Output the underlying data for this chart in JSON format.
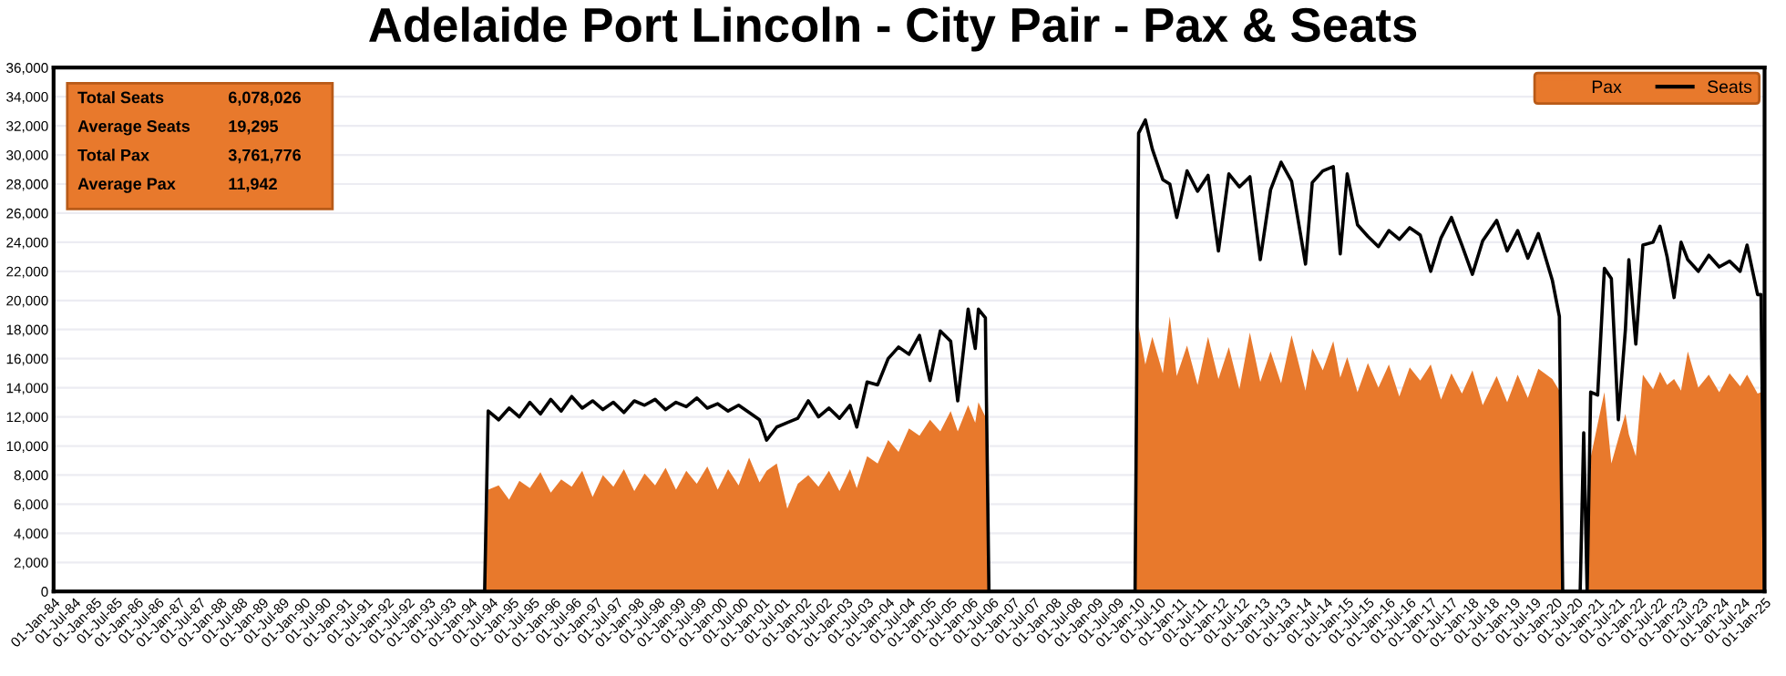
{
  "chart_data": {
    "type": "area",
    "title": "Adelaide Port Lincoln - City Pair - Pax & Seats",
    "x": [
      "1984-01",
      "1994-05",
      "1994-06",
      "1994-09",
      "1994-12",
      "1995-03",
      "1995-06",
      "1995-09",
      "1995-12",
      "1996-03",
      "1996-06",
      "1996-09",
      "1996-12",
      "1997-03",
      "1997-06",
      "1997-09",
      "1997-12",
      "1998-03",
      "1998-06",
      "1998-09",
      "1998-12",
      "1999-03",
      "1999-06",
      "1999-09",
      "1999-12",
      "2000-03",
      "2000-06",
      "2000-09",
      "2000-12",
      "2001-02",
      "2001-05",
      "2001-08",
      "2001-11",
      "2002-02",
      "2002-05",
      "2002-08",
      "2002-11",
      "2003-02",
      "2003-04",
      "2003-07",
      "2003-10",
      "2004-01",
      "2004-04",
      "2004-07",
      "2004-10",
      "2005-01",
      "2005-04",
      "2005-07",
      "2005-09",
      "2005-12",
      "2006-02",
      "2006-03",
      "2006-05",
      "2006-06",
      "2009-12",
      "2010-01",
      "2010-03",
      "2010-05",
      "2010-08",
      "2010-10",
      "2010-12",
      "2011-03",
      "2011-06",
      "2011-09",
      "2011-12",
      "2012-03",
      "2012-06",
      "2012-09",
      "2012-12",
      "2013-03",
      "2013-06",
      "2013-09",
      "2014-01",
      "2014-03",
      "2014-06",
      "2014-09",
      "2014-11",
      "2015-01",
      "2015-04",
      "2015-07",
      "2015-10",
      "2016-01",
      "2016-04",
      "2016-07",
      "2016-10",
      "2017-01",
      "2017-04",
      "2017-07",
      "2017-10",
      "2018-01",
      "2018-04",
      "2018-08",
      "2018-11",
      "2019-02",
      "2019-05",
      "2019-08",
      "2019-12",
      "2020-02",
      "2020-03",
      "2020-08",
      "2020-09",
      "2020-10",
      "2020-11",
      "2021-01",
      "2021-03",
      "2021-05",
      "2021-07",
      "2021-09",
      "2021-10",
      "2021-12",
      "2022-02",
      "2022-05",
      "2022-07",
      "2022-09",
      "2022-11",
      "2023-01",
      "2023-03",
      "2023-06",
      "2023-09",
      "2023-12",
      "2024-03",
      "2024-06",
      "2024-08",
      "2024-11",
      "2024-12",
      "2025-01"
    ],
    "series": [
      {
        "name": "Pax",
        "color": "#e8792c",
        "values": [
          0,
          0,
          7000,
          7300,
          6300,
          7600,
          7100,
          8200,
          6800,
          7700,
          7200,
          8300,
          6500,
          8000,
          7200,
          8400,
          6900,
          8100,
          7300,
          8500,
          7000,
          8300,
          7400,
          8600,
          7000,
          8400,
          7300,
          9200,
          7500,
          8300,
          8800,
          5700,
          7400,
          8000,
          7200,
          8300,
          6900,
          8400,
          7100,
          9300,
          8800,
          10400,
          9600,
          11200,
          10700,
          11800,
          11000,
          12400,
          11000,
          12800,
          11600,
          13000,
          12000,
          0,
          0,
          18200,
          15600,
          17500,
          15000,
          18900,
          14800,
          16900,
          14200,
          17500,
          14600,
          16800,
          13900,
          17800,
          14400,
          16500,
          14300,
          17600,
          13800,
          16700,
          15200,
          17200,
          14700,
          16100,
          13700,
          15700,
          14000,
          15600,
          13400,
          15400,
          14500,
          15600,
          13200,
          15000,
          13600,
          15200,
          12800,
          14800,
          13000,
          14900,
          13300,
          15300,
          14600,
          13800,
          0,
          0,
          0,
          0,
          9200,
          11500,
          13700,
          8800,
          10500,
          12200,
          10800,
          9300,
          14900,
          13900,
          15100,
          14200,
          14600,
          13800,
          16500,
          14000,
          14900,
          13700,
          15000,
          14100,
          14900,
          13600,
          13700,
          0
        ]
      },
      {
        "name": "Seats",
        "type": "line",
        "color": "#000000",
        "values": [
          0,
          0,
          12400,
          11800,
          12600,
          12000,
          13000,
          12200,
          13200,
          12400,
          13400,
          12600,
          13100,
          12500,
          13000,
          12300,
          13100,
          12800,
          13200,
          12500,
          13000,
          12700,
          13300,
          12600,
          12900,
          12400,
          12800,
          12300,
          11800,
          10400,
          11300,
          11600,
          11900,
          13100,
          12000,
          12600,
          11900,
          12800,
          11300,
          14400,
          14200,
          16000,
          16800,
          16300,
          17600,
          14500,
          17900,
          17200,
          13100,
          19400,
          16700,
          19400,
          18800,
          0,
          0,
          31500,
          32400,
          30400,
          28300,
          28000,
          25700,
          28900,
          27500,
          28600,
          23400,
          28700,
          27800,
          28500,
          22800,
          27600,
          29500,
          28200,
          22500,
          28100,
          28900,
          29200,
          23200,
          28700,
          25200,
          24400,
          23700,
          24800,
          24200,
          25000,
          24500,
          22000,
          24300,
          25700,
          23800,
          21800,
          24100,
          25500,
          23400,
          24800,
          22900,
          24600,
          21400,
          18900,
          0,
          0,
          10900,
          0,
          13700,
          13500,
          22200,
          21500,
          11800,
          18000,
          22800,
          17000,
          23800,
          24000,
          25100,
          23000,
          20200,
          24000,
          22800,
          22000,
          23100,
          22300,
          22700,
          22000,
          23800,
          20400,
          20400,
          0
        ]
      }
    ],
    "xlim": [
      "1984-01-01",
      "2025-01-01"
    ],
    "xticks": [
      {
        "value": "1984-01-01",
        "label": "01-Jan-84"
      },
      {
        "value": "1984-07-01",
        "label": "01-Jul-84"
      },
      {
        "value": "1985-01-01",
        "label": "01-Jan-85"
      },
      {
        "value": "1985-07-01",
        "label": "01-Jul-85"
      },
      {
        "value": "1986-01-01",
        "label": "01-Jan-86"
      },
      {
        "value": "1986-07-01",
        "label": "01-Jul-86"
      },
      {
        "value": "1987-01-01",
        "label": "01-Jan-87"
      },
      {
        "value": "1987-07-01",
        "label": "01-Jul-87"
      },
      {
        "value": "1988-01-01",
        "label": "01-Jan-88"
      },
      {
        "value": "1988-07-01",
        "label": "01-Jul-88"
      },
      {
        "value": "1989-01-01",
        "label": "01-Jan-89"
      },
      {
        "value": "1989-07-01",
        "label": "01-Jul-89"
      },
      {
        "value": "1990-01-01",
        "label": "01-Jan-90"
      },
      {
        "value": "1990-07-01",
        "label": "01-Jul-90"
      },
      {
        "value": "1991-01-01",
        "label": "01-Jan-91"
      },
      {
        "value": "1991-07-01",
        "label": "01-Jul-91"
      },
      {
        "value": "1992-01-01",
        "label": "01-Jan-92"
      },
      {
        "value": "1992-07-01",
        "label": "01-Jul-92"
      },
      {
        "value": "1993-01-01",
        "label": "01-Jan-93"
      },
      {
        "value": "1993-07-01",
        "label": "01-Jul-93"
      },
      {
        "value": "1994-01-01",
        "label": "01-Jan-94"
      },
      {
        "value": "1994-07-01",
        "label": "01-Jul-94"
      },
      {
        "value": "1995-01-01",
        "label": "01-Jan-95"
      },
      {
        "value": "1995-07-01",
        "label": "01-Jul-95"
      },
      {
        "value": "1996-01-01",
        "label": "01-Jan-96"
      },
      {
        "value": "1996-07-01",
        "label": "01-Jul-96"
      },
      {
        "value": "1997-01-01",
        "label": "01-Jan-97"
      },
      {
        "value": "1997-07-01",
        "label": "01-Jul-97"
      },
      {
        "value": "1998-01-01",
        "label": "01-Jan-98"
      },
      {
        "value": "1998-07-01",
        "label": "01-Jul-98"
      },
      {
        "value": "1999-01-01",
        "label": "01-Jan-99"
      },
      {
        "value": "1999-07-01",
        "label": "01-Jul-99"
      },
      {
        "value": "2000-01-01",
        "label": "01-Jan-00"
      },
      {
        "value": "2000-07-01",
        "label": "01-Jul-00"
      },
      {
        "value": "2001-01-01",
        "label": "01-Jan-01"
      },
      {
        "value": "2001-07-01",
        "label": "01-Jul-01"
      },
      {
        "value": "2002-01-01",
        "label": "01-Jan-02"
      },
      {
        "value": "2002-07-01",
        "label": "01-Jul-02"
      },
      {
        "value": "2003-01-01",
        "label": "01-Jan-03"
      },
      {
        "value": "2003-07-01",
        "label": "01-Jul-03"
      },
      {
        "value": "2004-01-01",
        "label": "01-Jan-04"
      },
      {
        "value": "2004-07-01",
        "label": "01-Jul-04"
      },
      {
        "value": "2005-01-01",
        "label": "01-Jan-05"
      },
      {
        "value": "2005-07-01",
        "label": "01-Jul-05"
      },
      {
        "value": "2006-01-01",
        "label": "01-Jan-06"
      },
      {
        "value": "2006-07-01",
        "label": "01-Jul-06"
      },
      {
        "value": "2007-01-01",
        "label": "01-Jan-07"
      },
      {
        "value": "2007-07-01",
        "label": "01-Jul-07"
      },
      {
        "value": "2008-01-01",
        "label": "01-Jan-08"
      },
      {
        "value": "2008-07-01",
        "label": "01-Jul-08"
      },
      {
        "value": "2009-01-01",
        "label": "01-Jan-09"
      },
      {
        "value": "2009-07-01",
        "label": "01-Jul-09"
      },
      {
        "value": "2010-01-01",
        "label": "01-Jan-10"
      },
      {
        "value": "2010-07-01",
        "label": "01-Jul-10"
      },
      {
        "value": "2011-01-01",
        "label": "01-Jan-11"
      },
      {
        "value": "2011-07-01",
        "label": "01-Jul-11"
      },
      {
        "value": "2012-01-01",
        "label": "01-Jan-12"
      },
      {
        "value": "2012-07-01",
        "label": "01-Jul-12"
      },
      {
        "value": "2013-01-01",
        "label": "01-Jan-13"
      },
      {
        "value": "2013-07-01",
        "label": "01-Jul-13"
      },
      {
        "value": "2014-01-01",
        "label": "01-Jan-14"
      },
      {
        "value": "2014-07-01",
        "label": "01-Jul-14"
      },
      {
        "value": "2015-01-01",
        "label": "01-Jan-15"
      },
      {
        "value": "2015-07-01",
        "label": "01-Jul-15"
      },
      {
        "value": "2016-01-01",
        "label": "01-Jan-16"
      },
      {
        "value": "2016-07-01",
        "label": "01-Jul-16"
      },
      {
        "value": "2017-01-01",
        "label": "01-Jan-17"
      },
      {
        "value": "2017-07-01",
        "label": "01-Jul-17"
      },
      {
        "value": "2018-01-01",
        "label": "01-Jan-18"
      },
      {
        "value": "2018-07-01",
        "label": "01-Jul-18"
      },
      {
        "value": "2019-01-01",
        "label": "01-Jan-19"
      },
      {
        "value": "2019-07-01",
        "label": "01-Jul-19"
      },
      {
        "value": "2020-01-01",
        "label": "01-Jan-20"
      },
      {
        "value": "2020-07-01",
        "label": "01-Jul-20"
      },
      {
        "value": "2021-01-01",
        "label": "01-Jan-21"
      },
      {
        "value": "2021-07-01",
        "label": "01-Jul-21"
      },
      {
        "value": "2022-01-01",
        "label": "01-Jan-22"
      },
      {
        "value": "2022-07-01",
        "label": "01-Jul-22"
      },
      {
        "value": "2023-01-01",
        "label": "01-Jan-23"
      },
      {
        "value": "2023-07-01",
        "label": "01-Jul-23"
      },
      {
        "value": "2024-01-01",
        "label": "01-Jan-24"
      },
      {
        "value": "2024-07-01",
        "label": "01-Jul-24"
      },
      {
        "value": "2025-01-01",
        "label": "01-Jan-25"
      }
    ],
    "ylim": [
      0,
      36000
    ],
    "yticks": [
      0,
      {
        "value": 2000,
        "label": "2,000"
      },
      {
        "value": 4000,
        "label": "4,000"
      },
      {
        "value": 6000,
        "label": "6,000"
      },
      {
        "value": 8000,
        "label": "8,000"
      },
      {
        "value": 10000,
        "label": "10,000"
      },
      {
        "value": 12000,
        "label": "12,000"
      },
      {
        "value": 14000,
        "label": "14,000"
      },
      {
        "value": 16000,
        "label": "16,000"
      },
      {
        "value": 18000,
        "label": "18,000"
      },
      {
        "value": 20000,
        "label": "20,000"
      },
      {
        "value": 22000,
        "label": "22,000"
      },
      {
        "value": 24000,
        "label": "24,000"
      },
      {
        "value": 26000,
        "label": "26,000"
      },
      {
        "value": 28000,
        "label": "28,000"
      },
      {
        "value": 30000,
        "label": "30,000"
      },
      {
        "value": 32000,
        "label": "32,000"
      },
      {
        "value": 34000,
        "label": "34,000"
      },
      {
        "value": 36000,
        "label": "36,000"
      }
    ],
    "grid": "y",
    "legend": "top right",
    "annotations": [
      "Total Seats",
      "6,078,026",
      "Average Seats",
      "19,295",
      "Total Pax",
      "3,761,776",
      "Average Pax",
      "11,942"
    ]
  }
}
